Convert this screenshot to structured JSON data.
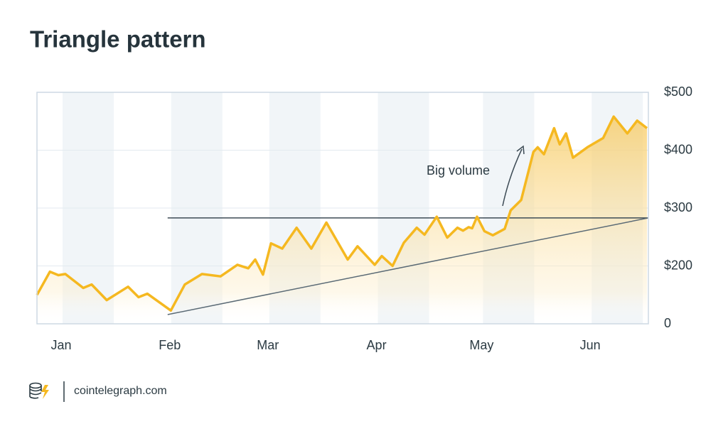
{
  "chart_data": {
    "type": "line",
    "title": "Triangle pattern",
    "x": [
      -6.9,
      -3.2,
      -0.8,
      1.2,
      6.3,
      8.7,
      13,
      19.1,
      22.1,
      24.6,
      31.3,
      35.3,
      40.2,
      45.5,
      50.3,
      53.4,
      55.4,
      57.6,
      59.9,
      63.1,
      67.2,
      71.4,
      75.7,
      81.8,
      84.6,
      89.5,
      91.5,
      94.6,
      97.8,
      101.5,
      103.7,
      107.2,
      110.2,
      113.1,
      114.7,
      116.3,
      117.3,
      118.7,
      120.8,
      123.2,
      126.6,
      128.3,
      131.3,
      134.8,
      136,
      137.8,
      140.7,
      142.3,
      144.1,
      146.1,
      150.2,
      154.7,
      157.7,
      161.6,
      164.4,
      167.2
    ],
    "values": [
      150,
      190,
      184,
      186,
      162,
      168,
      141,
      164,
      146,
      152,
      123,
      168,
      186,
      182,
      202,
      196,
      211,
      185,
      239,
      230,
      266,
      230,
      275,
      211,
      234,
      202,
      217,
      200,
      240,
      266,
      254,
      285,
      249,
      266,
      261,
      267,
      265,
      285,
      260,
      253,
      264,
      296,
      314,
      397,
      405,
      393,
      438,
      410,
      429,
      387,
      405,
      421,
      458,
      429,
      451,
      438
    ],
    "color": "#f5b820",
    "lines": [
      {
        "x": [
          30.4,
          167.6
        ],
        "values": [
          283,
          283
        ],
        "color": "#3d4b55"
      },
      {
        "x": [
          30.4,
          167.6
        ],
        "values": [
          116,
          283
        ],
        "color": "#5a6a75"
      }
    ],
    "annotations": [
      {
        "text": "Big volume"
      }
    ],
    "xlim": [
      -6.9,
      167.6
    ],
    "xticks": [
      {
        "value": 0,
        "label": "Jan"
      },
      {
        "value": 31,
        "label": "Feb"
      },
      {
        "value": 59,
        "label": "Mar"
      },
      {
        "value": 90,
        "label": "Apr"
      },
      {
        "value": 120,
        "label": "May"
      },
      {
        "value": 151,
        "label": "Jun"
      }
    ],
    "ylim": [
      0,
      500
    ],
    "ybreak": [
      0,
      100
    ],
    "yticks": [
      {
        "value": 0,
        "label": "0"
      },
      {
        "value": 200,
        "label": "$200"
      },
      {
        "value": 300,
        "label": "$300"
      },
      {
        "value": 400,
        "label": "$400"
      },
      {
        "value": 500,
        "label": "$500"
      }
    ],
    "grid": true
  },
  "footer": {
    "text": "cointelegraph.com"
  }
}
